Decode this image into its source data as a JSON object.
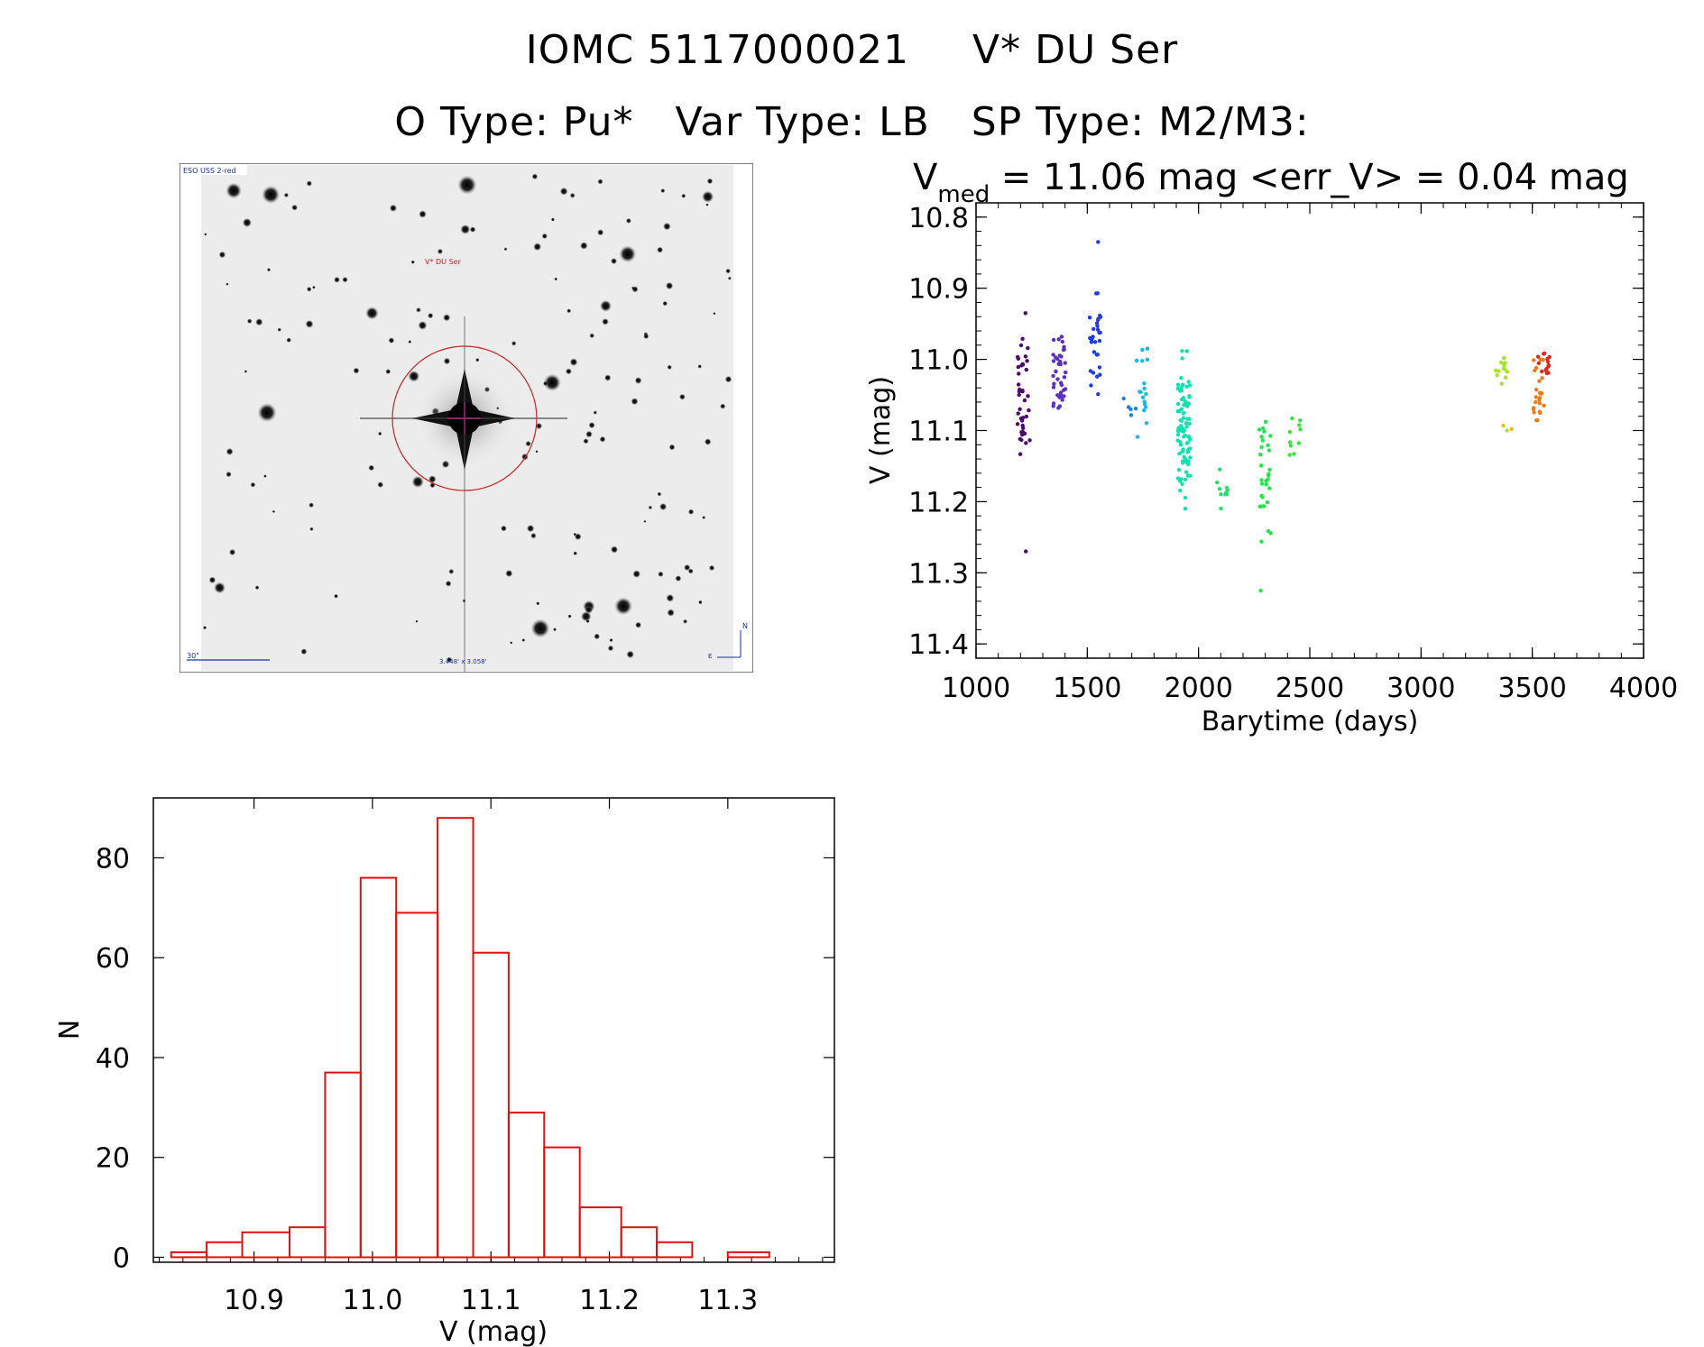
{
  "header": {
    "id": "IOMC 5117000021",
    "name": "V* DU Ser",
    "otype": "O Type: Pu*",
    "vartype": "Var Type: LB",
    "sptype": "SP Type: M2/M3:"
  },
  "thumbnail": {
    "survey": "ESO USS 2-red",
    "object_label": "V* DU Ser",
    "scale_label": "30\"",
    "fov_label": "3.448' x 3.058'",
    "north": "N",
    "east": "E",
    "colors": {
      "circle": "#cc2222",
      "label_red": "#cc2222",
      "label_blue": "#1a2ea0"
    }
  },
  "chart_data": [
    {
      "type": "scatter",
      "title_prefix": "V",
      "title_sub": "med",
      "title_rest": " = 11.06 mag <err_V> = 0.04 mag",
      "xlabel": "Barytime (days)",
      "ylabel": "V (mag)",
      "xlim": [
        1000,
        4000
      ],
      "ylim": [
        11.42,
        10.78
      ],
      "xticks": [
        1000,
        1500,
        2000,
        2500,
        3000,
        3500,
        4000
      ],
      "yticks": [
        10.8,
        10.9,
        11.0,
        11.1,
        11.2,
        11.3,
        11.4
      ],
      "ytick_labels": [
        "10.8",
        "10.9",
        "11.0",
        "11.1",
        "11.2",
        "11.3",
        "11.4"
      ],
      "groups": [
        {
          "x": 1215,
          "color": "#4b0a6e",
          "ymin": 10.95,
          "ymax": 11.15,
          "n": 40,
          "extra": [
            10.935,
            11.27
          ]
        },
        {
          "x": 1375,
          "color": "#5c2fc0",
          "ymin": 10.96,
          "ymax": 11.09,
          "n": 40,
          "extra": []
        },
        {
          "x": 1535,
          "color": "#1f3de0",
          "ymin": 10.88,
          "ymax": 11.07,
          "n": 30,
          "extra": [
            10.835
          ]
        },
        {
          "x": 1690,
          "color": "#1e82e0",
          "ymin": 11.05,
          "ymax": 11.1,
          "n": 5,
          "extra": []
        },
        {
          "x": 1745,
          "color": "#18b8e8",
          "ymin": 10.96,
          "ymax": 11.12,
          "n": 18,
          "extra": []
        },
        {
          "x": 1935,
          "color": "#14e0b0",
          "ymin": 10.97,
          "ymax": 11.22,
          "n": 90,
          "extra": []
        },
        {
          "x": 2105,
          "color": "#28e070",
          "ymin": 11.14,
          "ymax": 11.22,
          "n": 10,
          "extra": []
        },
        {
          "x": 2300,
          "color": "#22e646",
          "ymin": 11.08,
          "ymax": 11.26,
          "n": 30,
          "extra": [
            11.325
          ]
        },
        {
          "x": 2430,
          "color": "#34e836",
          "ymin": 11.07,
          "ymax": 11.14,
          "n": 10,
          "extra": []
        },
        {
          "x": 3360,
          "color": "#a6e81e",
          "ymin": 10.98,
          "ymax": 11.06,
          "n": 12,
          "extra": [
            11.1
          ]
        },
        {
          "x": 3380,
          "color": "#e8c018",
          "ymin": 11.09,
          "ymax": 11.1,
          "n": 2,
          "extra": []
        },
        {
          "x": 3525,
          "color": "#f07a18",
          "ymin": 10.98,
          "ymax": 11.11,
          "n": 25,
          "extra": []
        },
        {
          "x": 3550,
          "color": "#e0281c",
          "ymin": 10.98,
          "ymax": 11.03,
          "n": 14,
          "extra": []
        }
      ]
    },
    {
      "type": "bar",
      "style": "histogram-step",
      "ylabel": "N",
      "xlabel": "V (mag)",
      "xlim": [
        10.815,
        11.39
      ],
      "ylim": [
        -1,
        92
      ],
      "xticks": [
        10.9,
        11.0,
        11.1,
        11.2,
        11.3
      ],
      "xtick_labels": [
        "10.9",
        "11.0",
        "11.1",
        "11.2",
        "11.3"
      ],
      "yticks": [
        0,
        20,
        40,
        60,
        80
      ],
      "bin_edges": [
        10.83,
        10.86,
        10.89,
        10.93,
        10.96,
        10.99,
        11.02,
        11.055,
        11.085,
        11.115,
        11.145,
        11.175,
        11.21,
        11.24,
        11.27,
        11.3,
        11.335
      ],
      "counts": [
        1,
        3,
        5,
        6,
        37,
        76,
        69,
        88,
        61,
        29,
        22,
        10,
        6,
        3,
        0,
        1
      ],
      "color": "#e01010"
    }
  ]
}
